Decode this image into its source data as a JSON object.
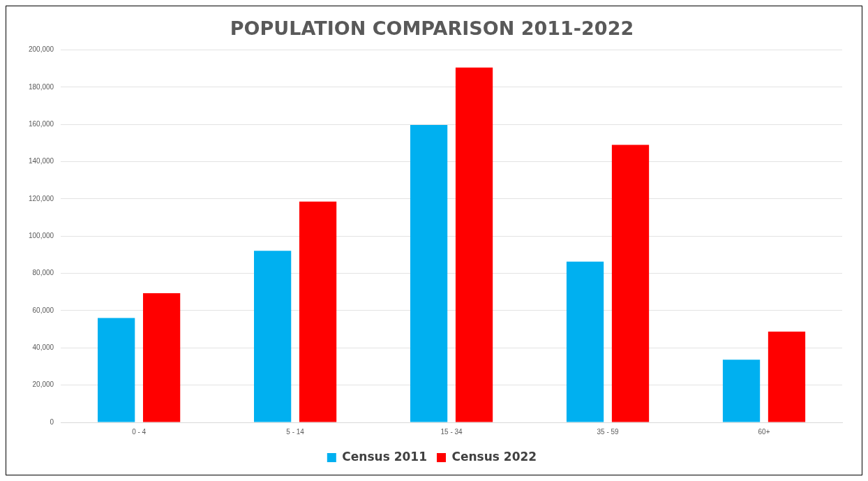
{
  "chart_data": {
    "type": "bar",
    "title": "POPULATION COMPARISON 2011-2022",
    "categories": [
      "0 - 4",
      "5 - 14",
      "15 - 34",
      "35 - 59",
      "60+"
    ],
    "series": [
      {
        "name": "Census 2011",
        "color": "#00b0f0",
        "values": [
          56000,
          92100,
          159700,
          86300,
          33600
        ]
      },
      {
        "name": "Census 2022",
        "color": "#ff0000",
        "values": [
          69300,
          118500,
          190500,
          149000,
          48700
        ]
      }
    ],
    "ylim": [
      0,
      200000
    ],
    "yticks": [
      0,
      {
        "value": 20000,
        "label": "20,000"
      },
      {
        "value": 40000,
        "label": "40,000"
      },
      {
        "value": 60000,
        "label": "60,000"
      },
      {
        "value": 80000,
        "label": "80,000"
      },
      {
        "value": 100000,
        "label": "100,000"
      },
      {
        "value": 120000,
        "label": "120,000"
      },
      {
        "value": 140000,
        "label": "140,000"
      },
      {
        "value": 160000,
        "label": "160,000"
      },
      {
        "value": 180000,
        "label": "180,000"
      },
      {
        "value": 200000,
        "label": "200,000"
      }
    ],
    "grid": "y",
    "legend": "bottom"
  }
}
